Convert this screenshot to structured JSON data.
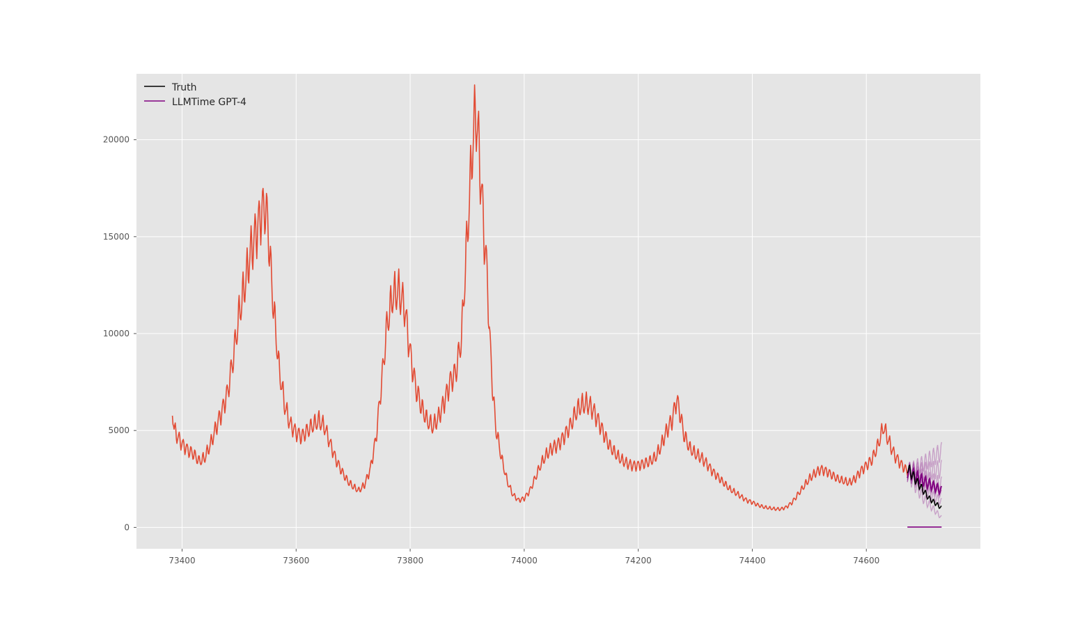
{
  "chart_data": {
    "type": "line",
    "title": "",
    "xlabel": "",
    "ylabel": "",
    "xlim": [
      73320,
      74800
    ],
    "ylim": [
      -1100,
      23400
    ],
    "grid": true,
    "legend_position": "upper-left",
    "x_ticks": [
      73400,
      73600,
      73800,
      74000,
      74200,
      74400,
      74600
    ],
    "y_ticks": [
      0,
      5000,
      10000,
      15000,
      20000
    ],
    "colors": {
      "history": "#e24a33",
      "truth": "#000000",
      "forecast": "#800080",
      "background": "#e5e5e5",
      "grid": "#ffffff"
    },
    "legend": [
      {
        "label": "Truth",
        "color": "#000000"
      },
      {
        "label": "LLMTime GPT-4",
        "color": "#800080"
      }
    ],
    "history_anchors": [
      [
        73383,
        6100
      ],
      [
        73386,
        5100
      ],
      [
        73390,
        4800
      ],
      [
        73400,
        4300
      ],
      [
        73410,
        4000
      ],
      [
        73420,
        3800
      ],
      [
        73430,
        3400
      ],
      [
        73440,
        3600
      ],
      [
        73450,
        4300
      ],
      [
        73460,
        5200
      ],
      [
        73470,
        6000
      ],
      [
        73480,
        7000
      ],
      [
        73490,
        8800
      ],
      [
        73500,
        11000
      ],
      [
        73510,
        12500
      ],
      [
        73520,
        14200
      ],
      [
        73530,
        15200
      ],
      [
        73540,
        16300
      ],
      [
        73545,
        16600
      ],
      [
        73550,
        15800
      ],
      [
        73555,
        13500
      ],
      [
        73560,
        11500
      ],
      [
        73570,
        8200
      ],
      [
        73580,
        6300
      ],
      [
        73590,
        5300
      ],
      [
        73600,
        4900
      ],
      [
        73610,
        4700
      ],
      [
        73620,
        5000
      ],
      [
        73630,
        5300
      ],
      [
        73640,
        5500
      ],
      [
        73650,
        5200
      ],
      [
        73660,
        4300
      ],
      [
        73670,
        3500
      ],
      [
        73680,
        2900
      ],
      [
        73690,
        2400
      ],
      [
        73700,
        2100
      ],
      [
        73710,
        1900
      ],
      [
        73720,
        2200
      ],
      [
        73730,
        3000
      ],
      [
        73740,
        4600
      ],
      [
        73750,
        7500
      ],
      [
        73760,
        10600
      ],
      [
        73770,
        12000
      ],
      [
        73780,
        12200
      ],
      [
        73790,
        11400
      ],
      [
        73800,
        9000
      ],
      [
        73810,
        7200
      ],
      [
        73820,
        6200
      ],
      [
        73830,
        5500
      ],
      [
        73840,
        5200
      ],
      [
        73850,
        5700
      ],
      [
        73860,
        6500
      ],
      [
        73870,
        7500
      ],
      [
        73880,
        8000
      ],
      [
        73890,
        9800
      ],
      [
        73900,
        15000
      ],
      [
        73910,
        20000
      ],
      [
        73915,
        21500
      ],
      [
        73920,
        19800
      ],
      [
        73930,
        15000
      ],
      [
        73935,
        13000
      ],
      [
        73940,
        9500
      ],
      [
        73945,
        7000
      ],
      [
        73950,
        5200
      ],
      [
        73960,
        3600
      ],
      [
        73970,
        2400
      ],
      [
        73980,
        1700
      ],
      [
        73990,
        1400
      ],
      [
        74000,
        1500
      ],
      [
        74010,
        1900
      ],
      [
        74020,
        2600
      ],
      [
        74030,
        3300
      ],
      [
        74040,
        3800
      ],
      [
        74050,
        4100
      ],
      [
        74060,
        4300
      ],
      [
        74070,
        4700
      ],
      [
        74080,
        5200
      ],
      [
        74090,
        5900
      ],
      [
        74100,
        6300
      ],
      [
        74110,
        6400
      ],
      [
        74120,
        6100
      ],
      [
        74130,
        5500
      ],
      [
        74140,
        4800
      ],
      [
        74150,
        4200
      ],
      [
        74160,
        3800
      ],
      [
        74170,
        3500
      ],
      [
        74180,
        3300
      ],
      [
        74190,
        3200
      ],
      [
        74200,
        3200
      ],
      [
        74210,
        3300
      ],
      [
        74220,
        3400
      ],
      [
        74230,
        3600
      ],
      [
        74240,
        4200
      ],
      [
        74250,
        5000
      ],
      [
        74260,
        5600
      ],
      [
        74267,
        6600
      ],
      [
        74272,
        6100
      ],
      [
        74280,
        4800
      ],
      [
        74290,
        4100
      ],
      [
        74300,
        3800
      ],
      [
        74310,
        3600
      ],
      [
        74320,
        3300
      ],
      [
        74330,
        2900
      ],
      [
        74340,
        2600
      ],
      [
        74350,
        2300
      ],
      [
        74360,
        2000
      ],
      [
        74370,
        1800
      ],
      [
        74380,
        1600
      ],
      [
        74390,
        1400
      ],
      [
        74400,
        1300
      ],
      [
        74410,
        1150
      ],
      [
        74420,
        1050
      ],
      [
        74430,
        1000
      ],
      [
        74440,
        950
      ],
      [
        74450,
        950
      ],
      [
        74460,
        1050
      ],
      [
        74470,
        1300
      ],
      [
        74480,
        1700
      ],
      [
        74490,
        2100
      ],
      [
        74500,
        2500
      ],
      [
        74510,
        2800
      ],
      [
        74520,
        3000
      ],
      [
        74530,
        2900
      ],
      [
        74540,
        2700
      ],
      [
        74550,
        2500
      ],
      [
        74560,
        2400
      ],
      [
        74570,
        2300
      ],
      [
        74580,
        2500
      ],
      [
        74590,
        2900
      ],
      [
        74600,
        3200
      ],
      [
        74610,
        3500
      ],
      [
        74620,
        4200
      ],
      [
        74630,
        5200
      ],
      [
        74640,
        4400
      ],
      [
        74650,
        3700
      ],
      [
        74660,
        3300
      ],
      [
        74672,
        2900
      ]
    ],
    "series": [
      {
        "name": "",
        "role": "history",
        "x_range": [
          73383,
          74672
        ],
        "daily": true
      },
      {
        "name": "Truth",
        "role": "truth",
        "points": [
          [
            74672,
            3100
          ],
          [
            74690,
            2300
          ],
          [
            74710,
            1500
          ],
          [
            74732,
            1000
          ]
        ]
      },
      {
        "name": "LLMTime GPT-4",
        "role": "forecast-median",
        "points": [
          [
            74672,
            2900
          ],
          [
            74700,
            2400
          ],
          [
            74732,
            1900
          ]
        ]
      },
      {
        "name": "LLMTime GPT-4",
        "role": "forecast-flat",
        "points": [
          [
            74672,
            20
          ],
          [
            74732,
            20
          ]
        ]
      },
      {
        "name": "",
        "role": "sample",
        "points": [
          [
            74672,
            2900
          ],
          [
            74700,
            3300
          ],
          [
            74732,
            3900
          ]
        ]
      },
      {
        "name": "",
        "role": "sample",
        "points": [
          [
            74672,
            2900
          ],
          [
            74700,
            2900
          ],
          [
            74732,
            3000
          ]
        ]
      },
      {
        "name": "",
        "role": "sample",
        "points": [
          [
            74672,
            2900
          ],
          [
            74700,
            2500
          ],
          [
            74732,
            2200
          ]
        ]
      },
      {
        "name": "",
        "role": "sample",
        "points": [
          [
            74672,
            2900
          ],
          [
            74700,
            2200
          ],
          [
            74732,
            1700
          ]
        ]
      },
      {
        "name": "",
        "role": "sample",
        "points": [
          [
            74672,
            2900
          ],
          [
            74700,
            2000
          ],
          [
            74732,
            1300
          ]
        ]
      },
      {
        "name": "",
        "role": "sample",
        "points": [
          [
            74672,
            2900
          ],
          [
            74700,
            1500
          ],
          [
            74732,
            500
          ]
        ]
      }
    ]
  }
}
